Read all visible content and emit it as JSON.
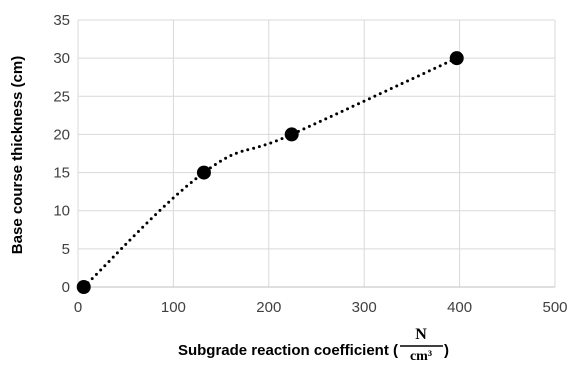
{
  "chart_data": {
    "type": "scatter",
    "title": "",
    "xlabel": "Subgrade reaction coefficient (",
    "xlabel_unit_numerator": "N",
    "xlabel_unit_denominator": "cm³",
    "xlabel_close": ")",
    "ylabel": "Base course thickness (cm)",
    "xlim": [
      0,
      500
    ],
    "ylim": [
      0,
      35
    ],
    "xticks": [
      0,
      100,
      200,
      300,
      400,
      500
    ],
    "yticks": [
      0,
      5,
      10,
      15,
      20,
      25,
      30,
      35
    ],
    "xtick_labels": [
      "0",
      "100",
      "200",
      "300",
      "400",
      "500"
    ],
    "ytick_labels": [
      "0",
      "5",
      "10",
      "15",
      "20",
      "25",
      "30",
      "35"
    ],
    "grid": true,
    "legend": "none",
    "series": [
      {
        "marker": "circle",
        "marker_color": "#000000",
        "line_style": "dotted smoothed",
        "line_color": "#000000",
        "x": [
          6,
          132,
          224,
          397
        ],
        "y": [
          0,
          15,
          20,
          30
        ]
      }
    ]
  }
}
